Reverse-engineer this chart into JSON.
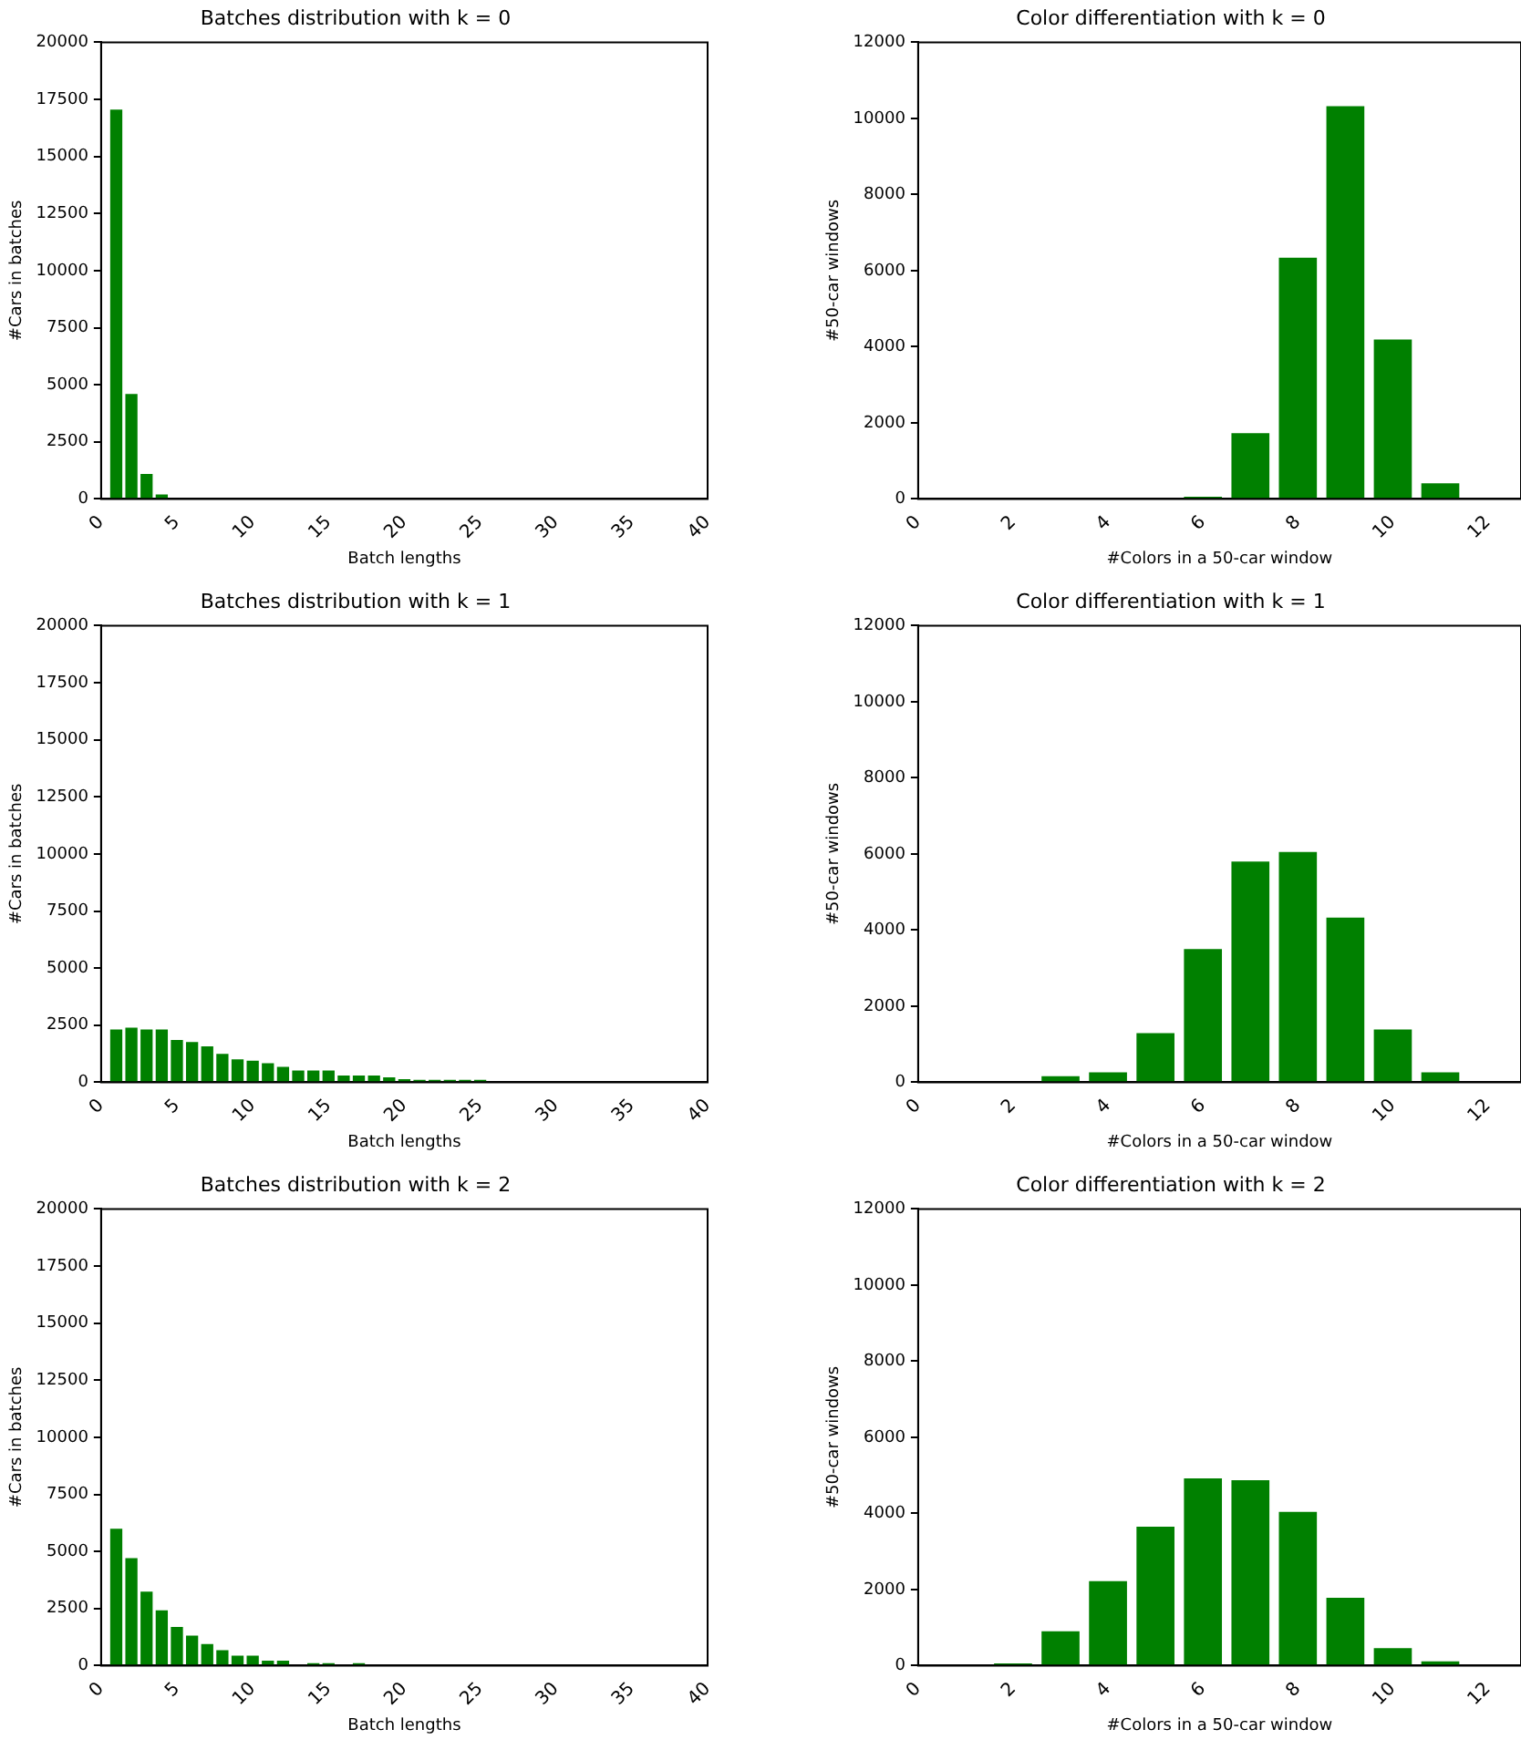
{
  "chart_data": [
    {
      "type": "bar",
      "title": "Batches distribution with k = 0",
      "xlabel": "Batch lengths",
      "ylabel": "#Cars in batches",
      "color": "#008000",
      "x": [
        1,
        2,
        3,
        4,
        5
      ],
      "values": [
        17050,
        4600,
        1100,
        200,
        40
      ],
      "xlim": [
        0,
        40
      ],
      "xticks": [
        0,
        5,
        10,
        15,
        20,
        25,
        30,
        35,
        40
      ],
      "ylim": [
        0,
        20000
      ],
      "yticks": [
        0,
        2500,
        5000,
        7500,
        10000,
        12500,
        15000,
        17500,
        20000
      ],
      "grid": false,
      "legend": false
    },
    {
      "type": "bar",
      "title": "Color differentiation with k = 0",
      "xlabel": "#Colors in a 50-car window",
      "ylabel": "#50-car windows",
      "color": "#008000",
      "x": [
        6,
        7,
        8,
        9,
        10,
        11
      ],
      "values": [
        60,
        1730,
        6340,
        10320,
        4190,
        410
      ],
      "xlim": [
        0,
        12.7
      ],
      "xticks": [
        0,
        2,
        4,
        6,
        8,
        10,
        12
      ],
      "ylim": [
        0,
        12000
      ],
      "yticks": [
        0,
        2000,
        4000,
        6000,
        8000,
        10000,
        12000
      ],
      "grid": false,
      "legend": false
    },
    {
      "type": "bar",
      "title": "Batches distribution with k = 1",
      "xlabel": "Batch lengths",
      "ylabel": "#Cars in batches",
      "color": "#008000",
      "x": [
        1,
        2,
        3,
        4,
        5,
        6,
        7,
        8,
        9,
        10,
        11,
        12,
        13,
        14,
        15,
        16,
        17,
        18,
        19,
        20,
        21,
        22,
        23,
        24,
        25
      ],
      "values": [
        2310,
        2390,
        2310,
        2310,
        1850,
        1760,
        1570,
        1240,
        1010,
        950,
        840,
        680,
        520,
        520,
        520,
        300,
        300,
        300,
        220,
        140,
        110,
        110,
        110,
        110,
        110
      ],
      "xlim": [
        0,
        40
      ],
      "xticks": [
        0,
        5,
        10,
        15,
        20,
        25,
        30,
        35,
        40
      ],
      "ylim": [
        0,
        20000
      ],
      "yticks": [
        0,
        2500,
        5000,
        7500,
        10000,
        12500,
        15000,
        17500,
        20000
      ],
      "grid": false,
      "legend": false
    },
    {
      "type": "bar",
      "title": "Color differentiation with k = 1",
      "xlabel": "#Colors in a 50-car window",
      "ylabel": "#50-car windows",
      "color": "#008000",
      "x": [
        3,
        4,
        5,
        6,
        7,
        8,
        9,
        10,
        11
      ],
      "values": [
        160,
        260,
        1290,
        3500,
        5800,
        6050,
        4330,
        1390,
        260
      ],
      "xlim": [
        0,
        12.7
      ],
      "xticks": [
        0,
        2,
        4,
        6,
        8,
        10,
        12
      ],
      "ylim": [
        0,
        12000
      ],
      "yticks": [
        0,
        2000,
        4000,
        6000,
        8000,
        10000,
        12000
      ],
      "grid": false,
      "legend": false
    },
    {
      "type": "bar",
      "title": "Batches distribution with k = 2",
      "xlabel": "Batch lengths",
      "ylabel": "#Cars in batches",
      "color": "#008000",
      "x": [
        1,
        2,
        3,
        4,
        5,
        6,
        7,
        8,
        9,
        10,
        11,
        12,
        13,
        14,
        15,
        16,
        17
      ],
      "values": [
        5990,
        4710,
        3240,
        2420,
        1690,
        1310,
        950,
        680,
        440,
        440,
        220,
        220,
        null,
        110,
        110,
        null,
        110
      ],
      "xlim": [
        0,
        40
      ],
      "xticks": [
        0,
        5,
        10,
        15,
        20,
        25,
        30,
        35,
        40
      ],
      "ylim": [
        0,
        20000
      ],
      "yticks": [
        0,
        2500,
        5000,
        7500,
        10000,
        12500,
        15000,
        17500,
        20000
      ],
      "grid": false,
      "legend": false
    },
    {
      "type": "bar",
      "title": "Color differentiation with k = 2",
      "xlabel": "#Colors in a 50-car window",
      "ylabel": "#50-car windows",
      "color": "#008000",
      "x": [
        2,
        3,
        4,
        5,
        6,
        7,
        8,
        9,
        10,
        11
      ],
      "values": [
        60,
        900,
        2220,
        3650,
        4920,
        4870,
        4040,
        1780,
        460,
        110
      ],
      "xlim": [
        0,
        12.7
      ],
      "xticks": [
        0,
        2,
        4,
        6,
        8,
        10,
        12
      ],
      "ylim": [
        0,
        12000
      ],
      "yticks": [
        0,
        2000,
        4000,
        6000,
        8000,
        10000,
        12000
      ],
      "grid": false,
      "legend": false
    }
  ]
}
